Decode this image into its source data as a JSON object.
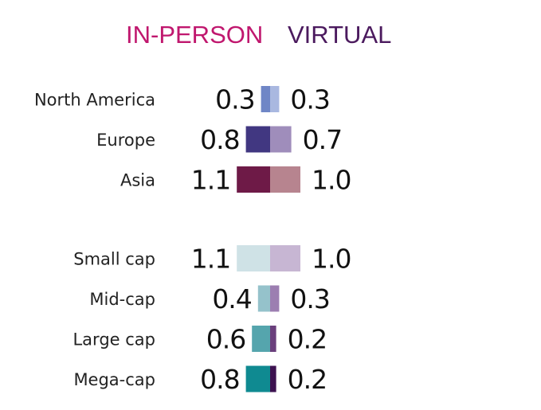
{
  "chart_data": {
    "type": "bar",
    "orientation": "horizontal-diverging",
    "series": [
      {
        "name": "IN-PERSON",
        "color": "#c0176e"
      },
      {
        "name": "VIRTUAL",
        "color": "#4b1a5e"
      }
    ],
    "groups": [
      {
        "rows": [
          {
            "category": "North America",
            "in_person": 0.3,
            "virtual": 0.3,
            "in_person_label": "0.3",
            "virtual_label": "0.3",
            "left_color": "#6f86c6",
            "right_color": "#a9b8e0"
          },
          {
            "category": "Europe",
            "in_person": 0.8,
            "virtual": 0.7,
            "in_person_label": "0.8",
            "virtual_label": "0.7",
            "left_color": "#413781",
            "right_color": "#9f8dbb"
          },
          {
            "category": "Asia",
            "in_person": 1.1,
            "virtual": 1.0,
            "in_person_label": "1.1",
            "virtual_label": "1.0",
            "left_color": "#6e1a47",
            "right_color": "#b7848f"
          }
        ]
      },
      {
        "rows": [
          {
            "category": "Small cap",
            "in_person": 1.1,
            "virtual": 1.0,
            "in_person_label": "1.1",
            "virtual_label": "1.0",
            "left_color": "#cfe2e6",
            "right_color": "#c7b6d3"
          },
          {
            "category": "Mid-cap",
            "in_person": 0.4,
            "virtual": 0.3,
            "in_person_label": "0.4",
            "virtual_label": "0.3",
            "left_color": "#95c2cb",
            "right_color": "#9c7eb1"
          },
          {
            "category": "Large cap",
            "in_person": 0.6,
            "virtual": 0.2,
            "in_person_label": "0.6",
            "virtual_label": "0.2",
            "left_color": "#55a5ad",
            "right_color": "#6a3f7c"
          },
          {
            "category": "Mega-cap",
            "in_person": 0.8,
            "virtual": 0.2,
            "in_person_label": "0.8",
            "virtual_label": "0.2",
            "left_color": "#0f8a91",
            "right_color": "#3d1250"
          }
        ]
      }
    ],
    "legend_position": "top",
    "grid": false
  }
}
